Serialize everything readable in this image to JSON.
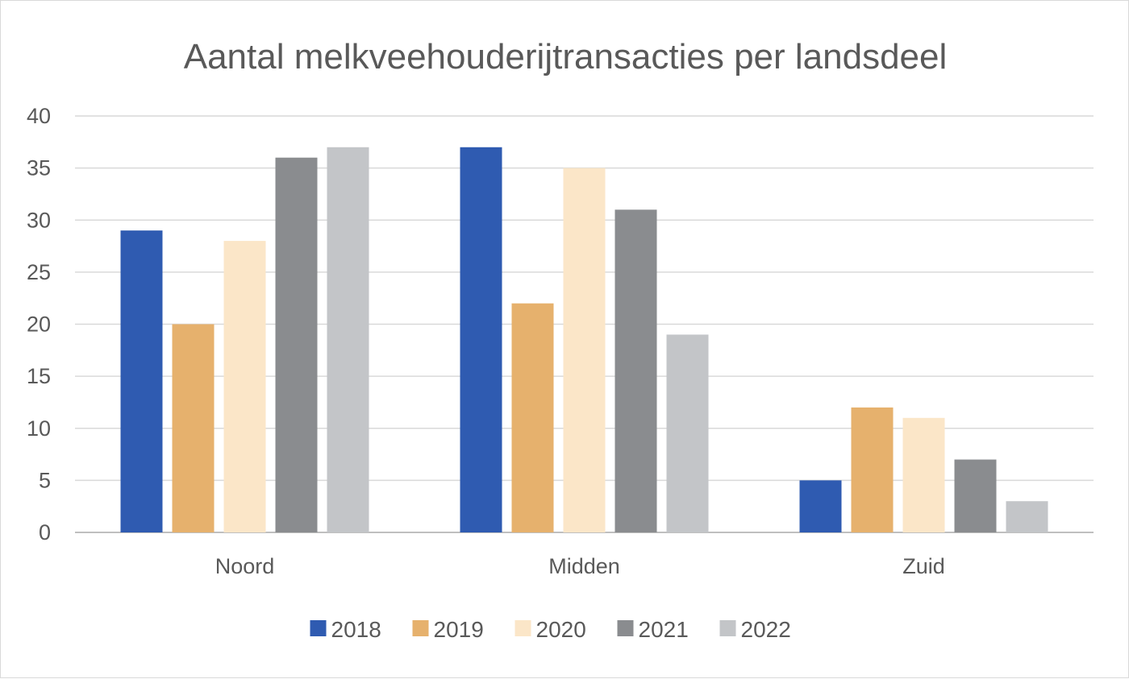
{
  "chart_data": {
    "type": "bar",
    "title": "Aantal melkveehouderijtransacties per landsdeel",
    "categories": [
      "Noord",
      "Midden",
      "Zuid"
    ],
    "series": [
      {
        "name": "2018",
        "color": "#2f5bb1",
        "values": [
          29,
          37,
          5
        ]
      },
      {
        "name": "2019",
        "color": "#e6b16d",
        "values": [
          20,
          22,
          12
        ]
      },
      {
        "name": "2020",
        "color": "#fbe6c8",
        "values": [
          28,
          35,
          11
        ]
      },
      {
        "name": "2021",
        "color": "#8a8c8f",
        "values": [
          36,
          31,
          7
        ]
      },
      {
        "name": "2022",
        "color": "#c3c5c8",
        "values": [
          37,
          19,
          3
        ]
      }
    ],
    "ylim": [
      0,
      40
    ],
    "yticks": [
      "0",
      "5",
      "10",
      "15",
      "20",
      "25",
      "30",
      "35",
      "40"
    ],
    "grid": true,
    "legend_position": "bottom"
  }
}
